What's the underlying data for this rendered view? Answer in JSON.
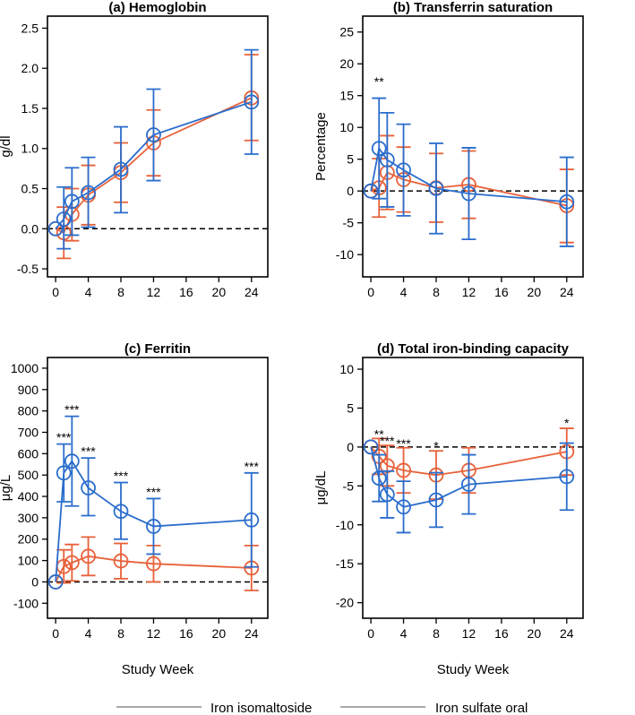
{
  "colors": {
    "iron_isomaltoside": "#2a6dcc",
    "iron_sulfate_oral": "#e8613a",
    "axis": "#000000",
    "legend_line": "#8c8c8c"
  },
  "legend": {
    "items": [
      {
        "name": "Iron isomaltoside",
        "color": "#2a6dcc"
      },
      {
        "name": "Iron sulfate oral",
        "color": "#e8613a"
      }
    ]
  },
  "chart_data": [
    {
      "type": "line",
      "title": "(a) Hemoglobin",
      "xlabel": "",
      "ylabel": "g/dl",
      "xlim": [
        -1,
        26
      ],
      "ylim": [
        -0.6,
        2.65
      ],
      "xticks": [
        0,
        4,
        8,
        12,
        16,
        20,
        24
      ],
      "yticks": [
        -0.5,
        0.0,
        0.5,
        1.0,
        1.5,
        2.0,
        2.5
      ],
      "ytick_labels": [
        "-0.5",
        "0.0",
        "0.5",
        "1.0",
        "1.5",
        "2.0",
        "2.5"
      ],
      "reference_line": 0,
      "x": [
        0,
        1,
        2,
        4,
        8,
        12,
        24
      ],
      "series": [
        {
          "name": "Iron isomaltoside",
          "color": "#2a6dcc",
          "values": [
            0.0,
            0.12,
            0.34,
            0.45,
            0.74,
            1.17,
            1.58
          ],
          "err_low": [
            0.0,
            -0.25,
            -0.08,
            0.02,
            0.2,
            0.6,
            0.93
          ],
          "err_high": [
            0.0,
            0.52,
            0.76,
            0.89,
            1.27,
            1.74,
            2.23
          ]
        },
        {
          "name": "Iron sulfate oral",
          "color": "#e8613a",
          "values": [
            0.0,
            -0.05,
            0.18,
            0.42,
            0.7,
            1.07,
            1.63
          ],
          "err_low": [
            0.0,
            -0.37,
            -0.15,
            0.05,
            0.33,
            0.66,
            1.1
          ],
          "err_high": [
            0.0,
            0.27,
            0.5,
            0.79,
            1.07,
            1.48,
            2.17
          ]
        }
      ],
      "annotations": []
    },
    {
      "type": "line",
      "title": "(b) Transferrin saturation",
      "xlabel": "",
      "ylabel": "Percentage",
      "xlim": [
        -1,
        26
      ],
      "ylim": [
        -13.5,
        27.5
      ],
      "xticks": [
        0,
        4,
        8,
        12,
        16,
        20,
        24
      ],
      "yticks": [
        -10,
        -5,
        0,
        5,
        10,
        15,
        20,
        25
      ],
      "ytick_labels": [
        "-10",
        "-5",
        "0",
        "5",
        "10",
        "15",
        "20",
        "25"
      ],
      "reference_line": 0,
      "x": [
        0,
        1,
        2,
        4,
        8,
        12,
        24
      ],
      "series": [
        {
          "name": "Iron isomaltoside",
          "color": "#2a6dcc",
          "values": [
            0,
            6.7,
            4.9,
            3.3,
            0.4,
            -0.4,
            -1.7
          ],
          "err_low": [
            0,
            -1.2,
            -2.5,
            -3.9,
            -6.7,
            -7.6,
            -8.7
          ],
          "err_high": [
            0,
            14.6,
            12.3,
            10.5,
            7.5,
            6.8,
            5.3
          ]
        },
        {
          "name": "Iron sulfate oral",
          "color": "#e8613a",
          "values": [
            0,
            0.5,
            2.9,
            1.8,
            0.5,
            1.0,
            -2.3
          ],
          "err_low": [
            0,
            -4.1,
            -2.9,
            -3.3,
            -4.9,
            -4.3,
            -8.1
          ],
          "err_high": [
            0,
            5.1,
            8.7,
            6.9,
            5.9,
            6.3,
            3.4
          ]
        }
      ],
      "annotations": [
        {
          "x": 1,
          "y": 16.5,
          "text": "**"
        }
      ]
    },
    {
      "type": "line",
      "title": "(c) Ferritin",
      "xlabel": "Study Week",
      "ylabel": "μg/L",
      "xlim": [
        -1,
        26
      ],
      "ylim": [
        -170,
        1050
      ],
      "xticks": [
        0,
        4,
        8,
        12,
        16,
        20,
        24
      ],
      "yticks": [
        -100,
        0,
        100,
        200,
        300,
        400,
        500,
        600,
        700,
        800,
        900,
        1000
      ],
      "ytick_labels": [
        "-100",
        "0",
        "100",
        "200",
        "300",
        "400",
        "500",
        "600",
        "700",
        "800",
        "900",
        "1000"
      ],
      "reference_line": 0,
      "x": [
        0,
        1,
        2,
        4,
        8,
        12,
        24
      ],
      "series": [
        {
          "name": "Iron isomaltoside",
          "color": "#2a6dcc",
          "values": [
            0,
            510,
            565,
            440,
            330,
            260,
            290
          ],
          "err_low": [
            0,
            375,
            355,
            310,
            200,
            130,
            70
          ],
          "err_high": [
            0,
            645,
            775,
            580,
            465,
            390,
            510
          ]
        },
        {
          "name": "Iron sulfate oral",
          "color": "#e8613a",
          "values": [
            0,
            72,
            90,
            120,
            98,
            85,
            65
          ],
          "err_low": [
            0,
            -5,
            5,
            30,
            15,
            0,
            -40
          ],
          "err_high": [
            0,
            150,
            175,
            210,
            180,
            170,
            170
          ]
        }
      ],
      "annotations": [
        {
          "x": 1,
          "y": 655,
          "text": "***"
        },
        {
          "x": 2,
          "y": 785,
          "text": "***"
        },
        {
          "x": 4,
          "y": 590,
          "text": "***"
        },
        {
          "x": 8,
          "y": 475,
          "text": "***"
        },
        {
          "x": 12,
          "y": 400,
          "text": "***"
        },
        {
          "x": 24,
          "y": 520,
          "text": "***"
        }
      ]
    },
    {
      "type": "line",
      "title": "(d) Total iron-binding capacity",
      "xlabel": "Study Week",
      "ylabel": "μg/dL",
      "xlim": [
        -1,
        26
      ],
      "ylim": [
        -22,
        11.5
      ],
      "xticks": [
        0,
        4,
        8,
        12,
        16,
        20,
        24
      ],
      "yticks": [
        -20,
        -15,
        -10,
        -5,
        0,
        5,
        10
      ],
      "ytick_labels": [
        "-20",
        "-15",
        "-10",
        "-5",
        "0",
        "5",
        "10"
      ],
      "reference_line": 0,
      "x": [
        0,
        1,
        2,
        4,
        8,
        12,
        24
      ],
      "series": [
        {
          "name": "Iron isomaltoside",
          "color": "#2a6dcc",
          "values": [
            0,
            -4.0,
            -6.1,
            -7.7,
            -6.8,
            -4.8,
            -3.8
          ],
          "err_low": [
            0,
            -7.0,
            -9.1,
            -11.0,
            -10.3,
            -8.6,
            -8.1
          ],
          "err_high": [
            0,
            -1.0,
            -3.1,
            -4.4,
            -3.3,
            -1.0,
            0.5
          ]
        },
        {
          "name": "Iron sulfate oral",
          "color": "#e8613a",
          "values": [
            0,
            -1.2,
            -2.4,
            -3.0,
            -3.6,
            -3.0,
            -0.6
          ],
          "err_low": [
            0,
            -3.5,
            -5.0,
            -5.9,
            -6.7,
            -5.9,
            -3.6
          ],
          "err_high": [
            0,
            1.1,
            0.2,
            -0.1,
            -0.5,
            -0.1,
            2.4
          ]
        }
      ],
      "annotations": [
        {
          "x": 1,
          "y": 1.1,
          "text": "**"
        },
        {
          "x": 2,
          "y": 0.2,
          "text": "***"
        },
        {
          "x": 4,
          "y": -0.1,
          "text": "***"
        },
        {
          "x": 8,
          "y": -0.4,
          "text": "*"
        },
        {
          "x": 24,
          "y": 2.5,
          "text": "*"
        }
      ]
    }
  ]
}
